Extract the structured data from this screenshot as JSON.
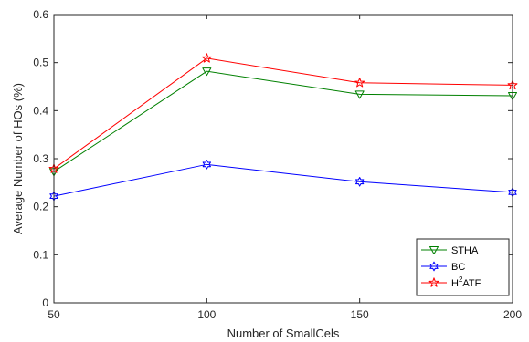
{
  "chart_data": {
    "type": "line",
    "title": "",
    "xlabel": "Number of SmallCels",
    "ylabel": "Average Number of HOs (%)",
    "x": [
      50,
      100,
      150,
      200
    ],
    "xlim": [
      50,
      200
    ],
    "ylim": [
      0,
      0.6
    ],
    "xticks": [
      "50",
      "100",
      "150",
      "200"
    ],
    "yticks": [
      "0",
      "0.1",
      "0.2",
      "0.3",
      "0.4",
      "0.5",
      "0.6"
    ],
    "grid": false,
    "legend_position": "bottom-right",
    "series": [
      {
        "name": "STHA",
        "color": "#008000",
        "marker": "triangle-down",
        "values": [
          0.273,
          0.482,
          0.434,
          0.431
        ]
      },
      {
        "name": "BC",
        "color": "#0000ff",
        "marker": "hexagram",
        "values": [
          0.222,
          0.288,
          0.252,
          0.23
        ]
      },
      {
        "name": "H2ATF",
        "color": "#ff0000",
        "marker": "pentagram",
        "values": [
          0.279,
          0.509,
          0.458,
          0.453
        ]
      }
    ]
  }
}
